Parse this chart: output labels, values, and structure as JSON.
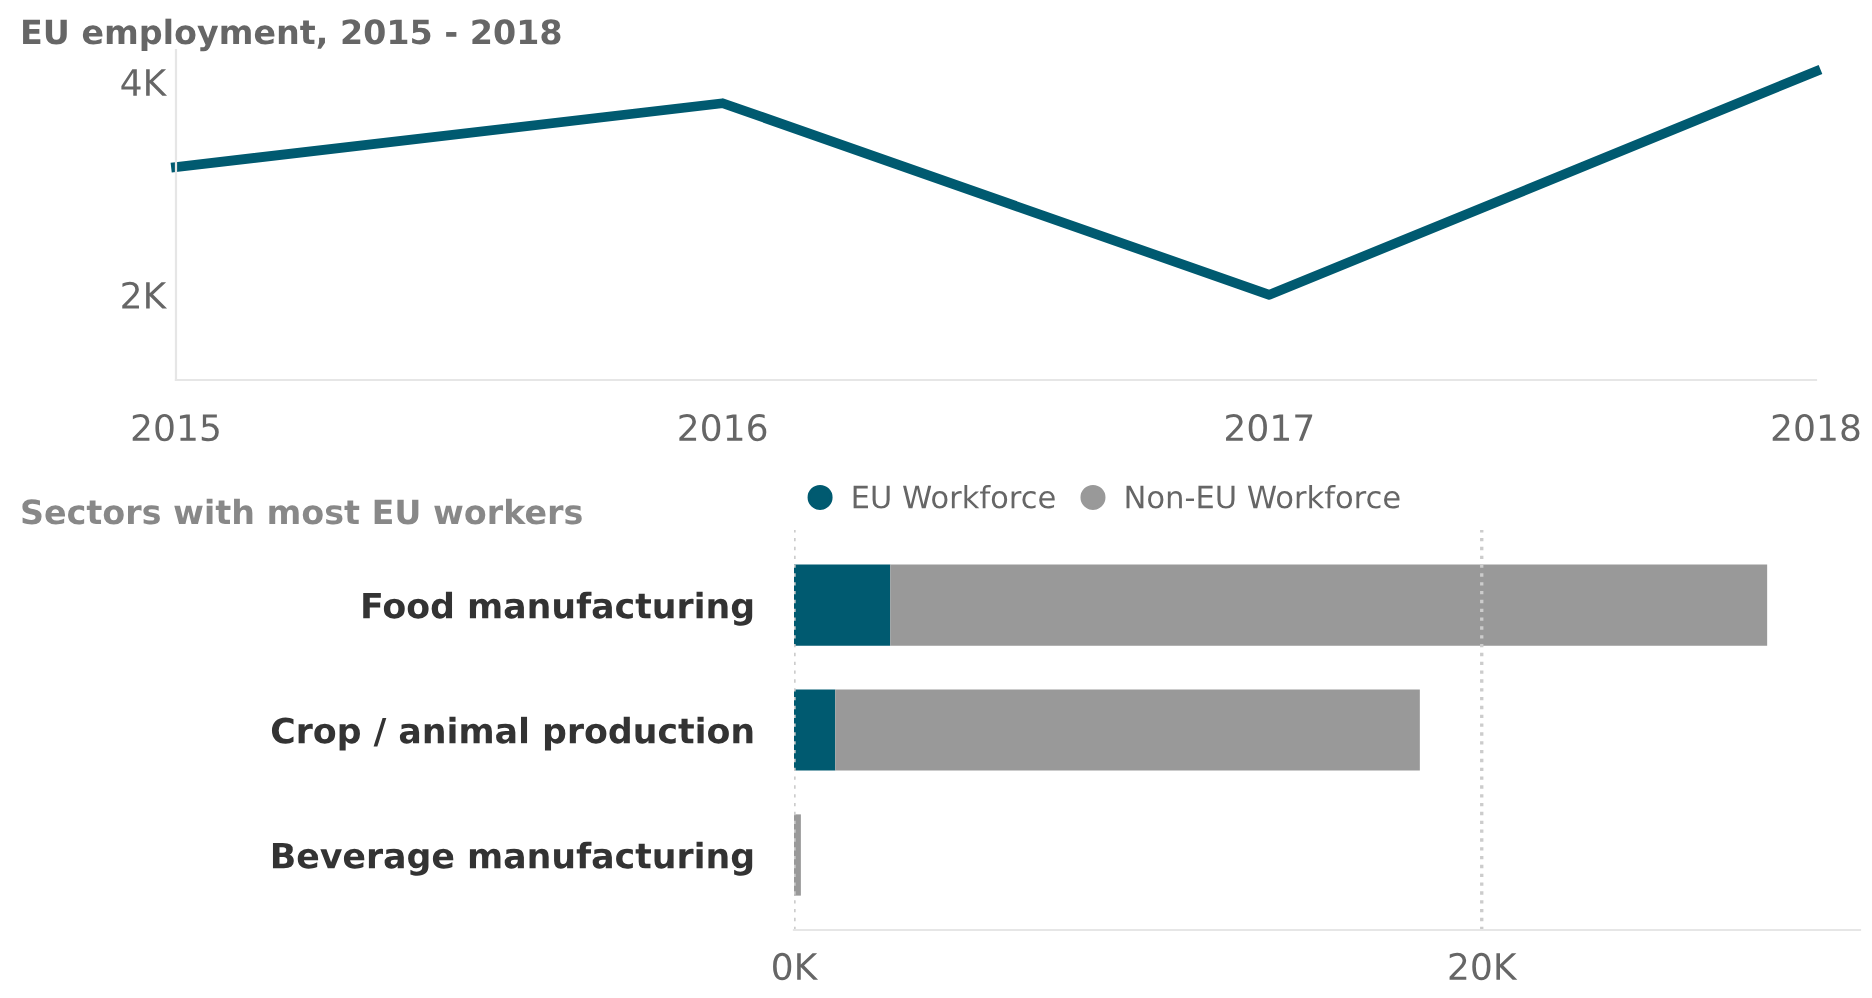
{
  "chart_data": [
    {
      "type": "line",
      "title": "EU employment, 2015 - 2018",
      "x": [
        2015,
        2016,
        2017,
        2018
      ],
      "series": [
        {
          "color": "#005a70",
          "values": [
            3200,
            3800,
            2000,
            4100
          ]
        }
      ],
      "xlim": [
        2015,
        2018
      ],
      "xticks": [
        2015,
        2016,
        2017,
        2018
      ],
      "ylim": [
        1200,
        4300
      ],
      "yticks": [
        {
          "value": 2000,
          "label": "2K"
        },
        {
          "value": 4000,
          "label": "4K"
        }
      ],
      "grid": false,
      "legend": false,
      "marker": "none",
      "line_style": "solid"
    },
    {
      "type": "bar",
      "title": "Sectors with most EU workers",
      "orientation": "horizontal",
      "stacked": true,
      "categories": [
        "Food manufacturing",
        "Crop / animal production",
        "Beverage manufacturing"
      ],
      "series": [
        {
          "name": "EU Workforce",
          "color": "#005a70",
          "values": [
            2800,
            1200,
            0
          ]
        },
        {
          "name": "Non-EU Workforce",
          "color": "#999999",
          "values": [
            25500,
            17000,
            200
          ]
        }
      ],
      "xlim": [
        0,
        31000
      ],
      "xticks": [
        {
          "value": 0,
          "label": "0K"
        },
        {
          "value": 20000,
          "label": "20K"
        }
      ],
      "grid": "x",
      "legend": "top"
    }
  ]
}
